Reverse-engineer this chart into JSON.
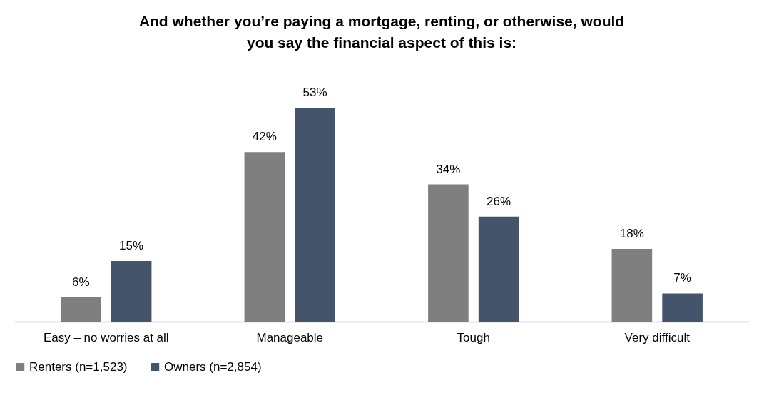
{
  "chart_data": {
    "type": "bar",
    "title": "And whether you’re paying a mortgage, renting, or otherwise, would you say the financial aspect of this is:",
    "categories": [
      "Easy – no worries at all",
      "Manageable",
      "Tough",
      "Very difficult"
    ],
    "series": [
      {
        "name": "Renters (n=1,523)",
        "color": "#7f7f7f",
        "values": [
          6,
          42,
          34,
          18
        ],
        "value_labels": [
          "6%",
          "42%",
          "34%",
          "18%"
        ]
      },
      {
        "name": "Owners (n=2,854)",
        "color": "#44546a",
        "values": [
          15,
          53,
          26,
          7
        ],
        "value_labels": [
          "15%",
          "53%",
          "26%",
          "7%"
        ]
      }
    ],
    "legend": "bottom",
    "grid": false
  }
}
